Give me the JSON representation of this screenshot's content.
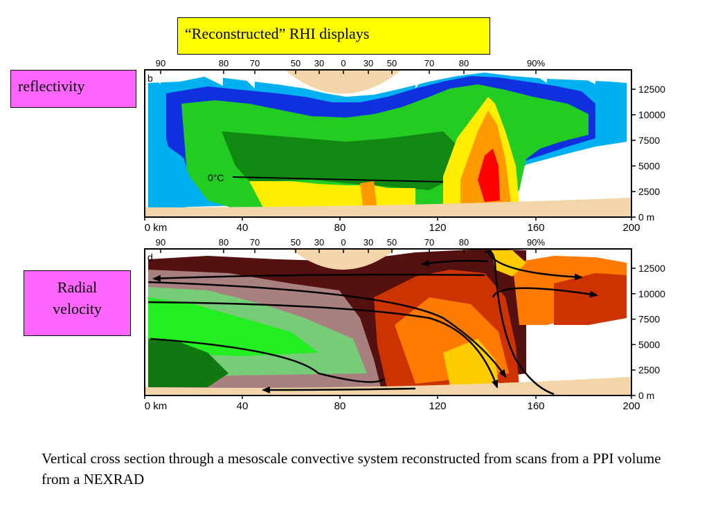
{
  "title": "“Reconstructed” RHI displays",
  "labels": {
    "reflectivity": "reflectivity",
    "radial_line1": "Radial",
    "radial_line2": "velocity"
  },
  "caption": "Vertical cross section through a mesoscale convective system reconstructed from scans from a PPI volume from a NEXRAD",
  "panel_top": {
    "letter": "b",
    "elevation_labels": [
      "90",
      "80",
      "70",
      "50",
      "30",
      "0",
      "30",
      "50",
      "70",
      "80",
      "90%"
    ],
    "freezing_label": "0°C"
  },
  "panel_bottom": {
    "letter": "d",
    "elevation_labels": [
      "90",
      "80",
      "70",
      "50",
      "30",
      "0",
      "30",
      "50",
      "70",
      "80",
      "90%"
    ]
  },
  "axes": {
    "x_ticks": [
      "0 km",
      "40",
      "80",
      "120",
      "160",
      "200"
    ],
    "y_ticks": [
      "12500",
      "10000",
      "7500",
      "5000",
      "2500",
      "0 m"
    ]
  },
  "colors": {
    "title_bg": "#ffff00",
    "label_bg": "#ff66ff",
    "terrain": "#f2d5a8",
    "refl_palette": [
      "#00b0f0",
      "#1030e0",
      "#22cc22",
      "#118811",
      "#ffee00",
      "#ff9900",
      "#ff0000"
    ],
    "vel_palette": [
      "#22ee22",
      "#117711",
      "#77cc77",
      "#a88080",
      "#551010",
      "#cc3300",
      "#ff7a00",
      "#ffcc00"
    ]
  }
}
